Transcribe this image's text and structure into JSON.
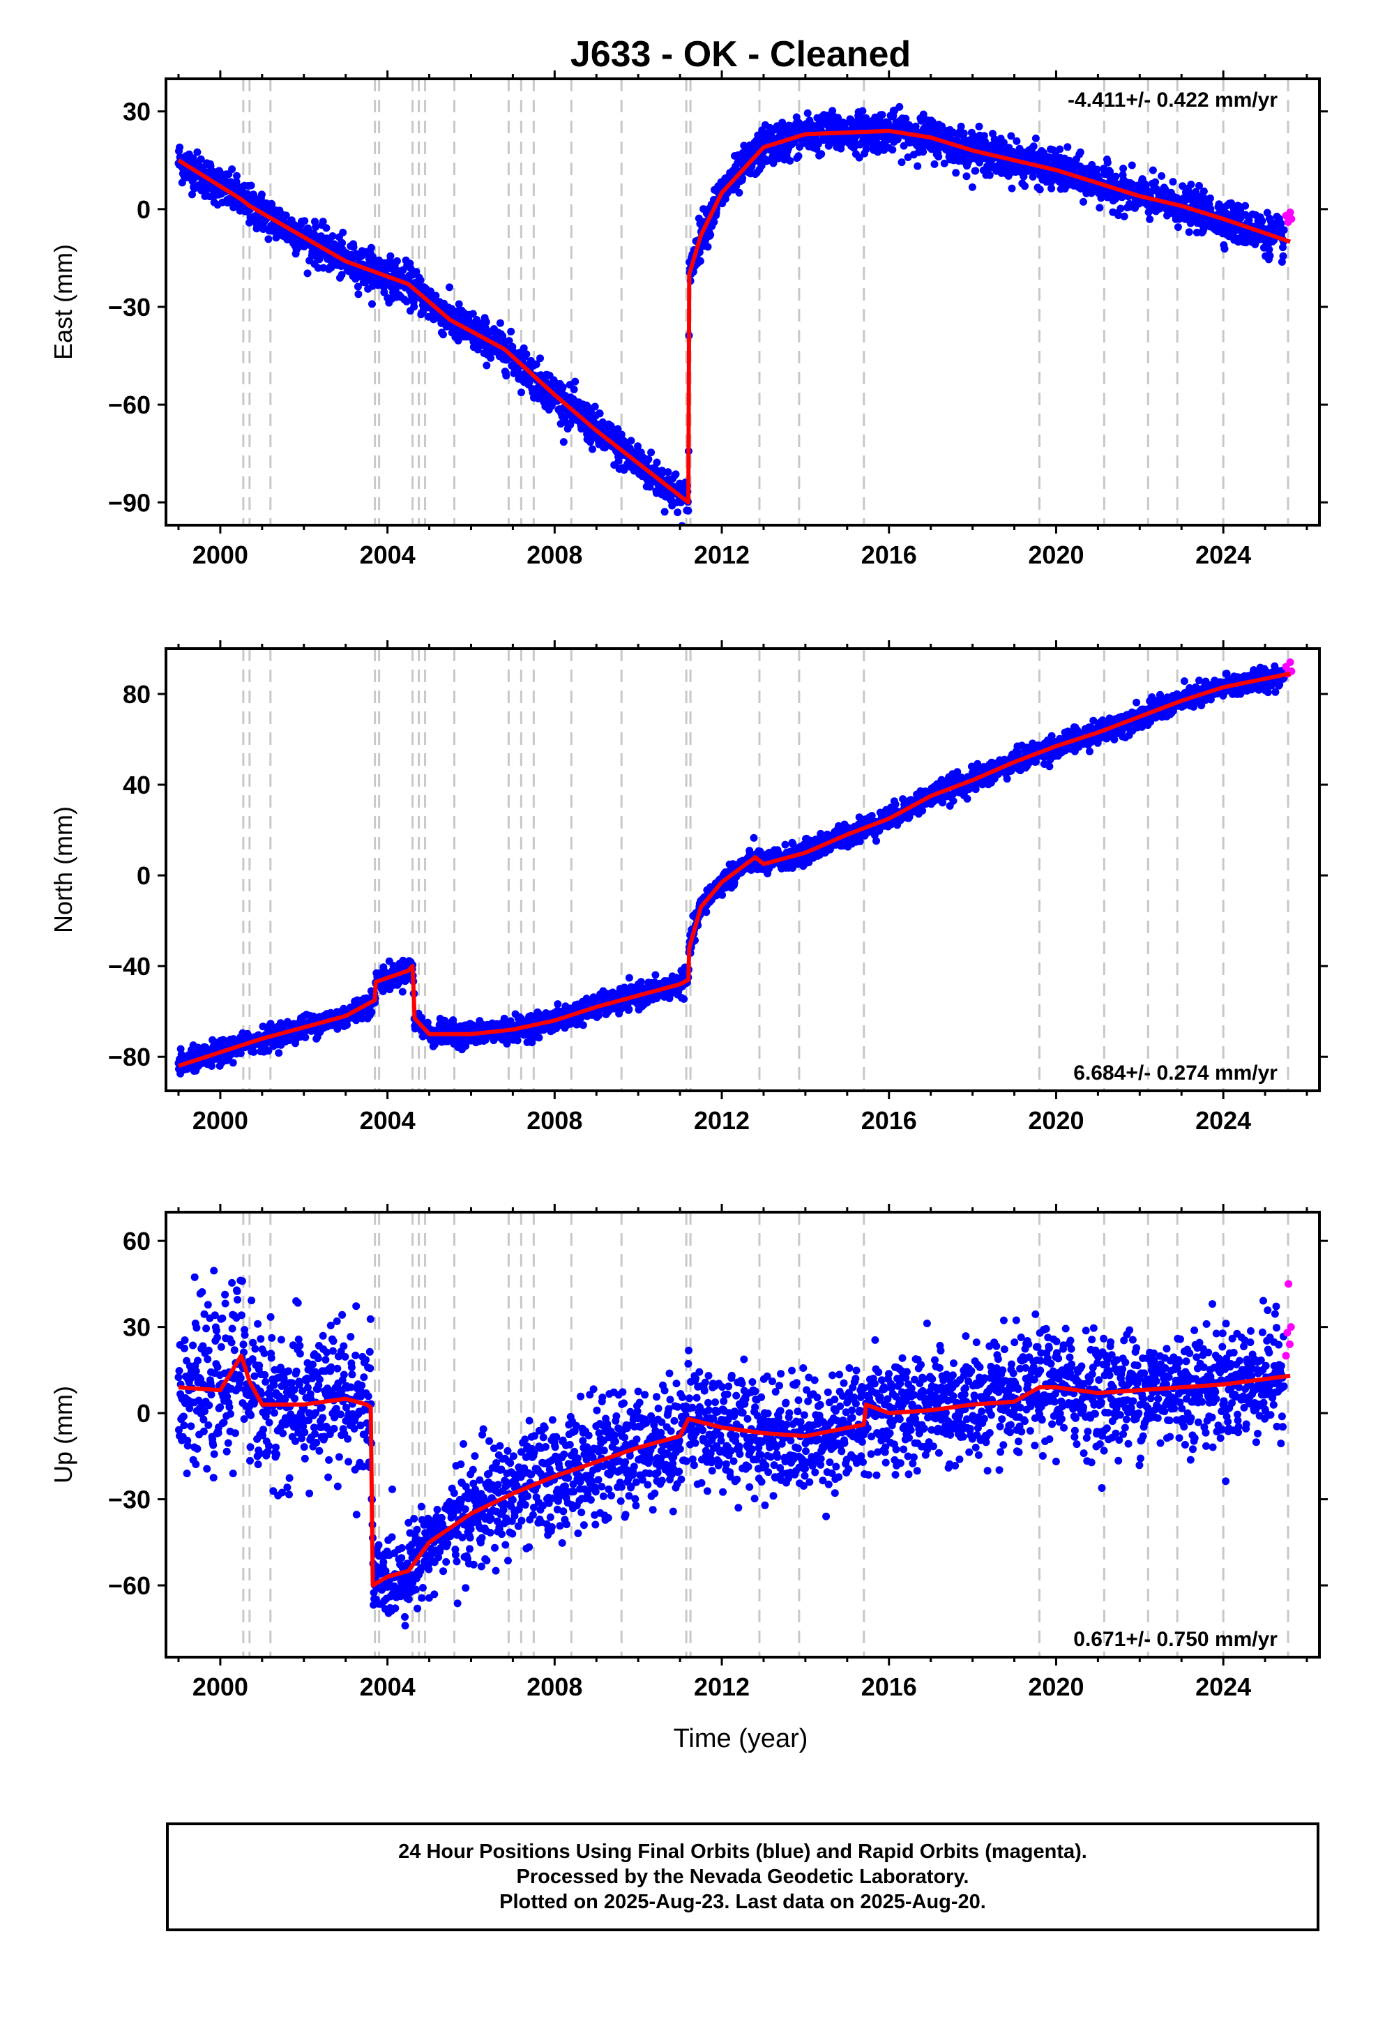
{
  "chart_data": [
    {
      "type": "scatter",
      "title": "J633  - OK - Cleaned",
      "xlabel": "",
      "ylabel": "East (mm)",
      "xlim": [
        1998.7,
        2026.3
      ],
      "ylim": [
        -97,
        40
      ],
      "xticks": [
        2000,
        2004,
        2008,
        2012,
        2016,
        2020,
        2024
      ],
      "yticks": [
        30,
        0,
        -30,
        -60,
        -90
      ],
      "rate_annotation": "-4.411+/- 0.422 mm/yr",
      "annotation_position": "top-right",
      "colors": {
        "final": "#0000ff",
        "rapid": "#ff00ff",
        "model": "#ff0000",
        "events": "#c8c8c8"
      },
      "model": [
        [
          1999.0,
          15
        ],
        [
          2000.5,
          3
        ],
        [
          2000.7,
          1
        ],
        [
          2003.0,
          -16
        ],
        [
          2004.5,
          -23
        ],
        [
          2005.5,
          -34
        ],
        [
          2006.8,
          -43
        ],
        [
          2008.0,
          -57
        ],
        [
          2009.0,
          -68
        ],
        [
          2010.0,
          -78
        ],
        [
          2011.0,
          -88
        ],
        [
          2011.2,
          -90
        ],
        [
          2011.22,
          -20
        ],
        [
          2011.5,
          -8
        ],
        [
          2012.0,
          5
        ],
        [
          2012.5,
          12
        ],
        [
          2013.0,
          19
        ],
        [
          2013.5,
          21
        ],
        [
          2014.0,
          23
        ],
        [
          2016.0,
          24
        ],
        [
          2017.0,
          22
        ],
        [
          2018.0,
          18
        ],
        [
          2019.0,
          15
        ],
        [
          2020.0,
          12
        ],
        [
          2021.0,
          8
        ],
        [
          2022.0,
          4
        ],
        [
          2023.0,
          1
        ],
        [
          2024.0,
          -3
        ],
        [
          2025.6,
          -10
        ]
      ],
      "scatter_sigma": 3,
      "final_range": [
        1999.0,
        2025.45
      ],
      "rapid_points": [
        [
          2025.5,
          -2
        ],
        [
          2025.55,
          -4
        ],
        [
          2025.6,
          -1
        ],
        [
          2025.63,
          -3
        ]
      ]
    },
    {
      "type": "scatter",
      "title": "",
      "xlabel": "",
      "ylabel": "North (mm)",
      "xlim": [
        1998.7,
        2026.3
      ],
      "ylim": [
        -95,
        100
      ],
      "xticks": [
        2000,
        2004,
        2008,
        2012,
        2016,
        2020,
        2024
      ],
      "yticks": [
        80,
        40,
        0,
        -40,
        -80
      ],
      "rate_annotation": "6.684+/- 0.274 mm/yr",
      "annotation_position": "bottom-right",
      "colors": {
        "final": "#0000ff",
        "rapid": "#ff00ff",
        "model": "#ff0000",
        "events": "#c8c8c8"
      },
      "model": [
        [
          1999.0,
          -84
        ],
        [
          2000.0,
          -78
        ],
        [
          2001.0,
          -72
        ],
        [
          2002.0,
          -67
        ],
        [
          2003.0,
          -62
        ],
        [
          2003.7,
          -55
        ],
        [
          2003.72,
          -47
        ],
        [
          2004.5,
          -42
        ],
        [
          2004.6,
          -40
        ],
        [
          2004.65,
          -63
        ],
        [
          2005.0,
          -70
        ],
        [
          2006.0,
          -70
        ],
        [
          2007.0,
          -68
        ],
        [
          2008.0,
          -64
        ],
        [
          2009.0,
          -58
        ],
        [
          2010.0,
          -53
        ],
        [
          2011.0,
          -48
        ],
        [
          2011.2,
          -46
        ],
        [
          2011.22,
          -32
        ],
        [
          2011.5,
          -14
        ],
        [
          2012.0,
          -3
        ],
        [
          2012.8,
          8
        ],
        [
          2013.0,
          5
        ],
        [
          2014.0,
          10
        ],
        [
          2015.0,
          18
        ],
        [
          2016.0,
          25
        ],
        [
          2017.0,
          35
        ],
        [
          2018.0,
          42
        ],
        [
          2019.0,
          50
        ],
        [
          2020.0,
          57
        ],
        [
          2021.0,
          63
        ],
        [
          2022.0,
          70
        ],
        [
          2023.0,
          77
        ],
        [
          2024.0,
          83
        ],
        [
          2025.6,
          89
        ]
      ],
      "scatter_sigma": 2.5,
      "final_range": [
        1999.0,
        2025.45
      ],
      "rapid_points": [
        [
          2025.5,
          92
        ],
        [
          2025.55,
          89
        ],
        [
          2025.6,
          94
        ],
        [
          2025.63,
          90
        ]
      ]
    },
    {
      "type": "scatter",
      "title": "",
      "xlabel": "Time (year)",
      "ylabel": "Up (mm)",
      "xlim": [
        1998.7,
        2026.3
      ],
      "ylim": [
        -85,
        70
      ],
      "xticks": [
        2000,
        2004,
        2008,
        2012,
        2016,
        2020,
        2024
      ],
      "yticks": [
        60,
        30,
        0,
        -30,
        -60
      ],
      "rate_annotation": "0.671+/- 0.750 mm/yr",
      "annotation_position": "bottom-right",
      "colors": {
        "final": "#0000ff",
        "rapid": "#ff00ff",
        "model": "#ff0000",
        "events": "#c8c8c8"
      },
      "model": [
        [
          1999.0,
          9
        ],
        [
          2000.0,
          8
        ],
        [
          2000.5,
          20
        ],
        [
          2000.7,
          11
        ],
        [
          2001.0,
          3
        ],
        [
          2002.0,
          3
        ],
        [
          2003.0,
          5
        ],
        [
          2003.5,
          3
        ],
        [
          2003.6,
          2
        ],
        [
          2003.65,
          -60
        ],
        [
          2004.0,
          -57
        ],
        [
          2004.5,
          -55
        ],
        [
          2005.0,
          -45
        ],
        [
          2006.0,
          -35
        ],
        [
          2007.0,
          -28
        ],
        [
          2008.0,
          -22
        ],
        [
          2009.0,
          -17
        ],
        [
          2010.0,
          -12
        ],
        [
          2011.0,
          -8
        ],
        [
          2011.2,
          -2
        ],
        [
          2012.0,
          -5
        ],
        [
          2013.0,
          -7
        ],
        [
          2014.0,
          -8
        ],
        [
          2015.4,
          -4
        ],
        [
          2015.45,
          3
        ],
        [
          2016.0,
          0
        ],
        [
          2017.0,
          1
        ],
        [
          2018.0,
          3
        ],
        [
          2019.0,
          4
        ],
        [
          2019.6,
          9
        ],
        [
          2020.0,
          9
        ],
        [
          2021.0,
          7
        ],
        [
          2022.0,
          8
        ],
        [
          2023.0,
          9
        ],
        [
          2024.0,
          10
        ],
        [
          2025.6,
          13
        ]
      ],
      "scatter_sigma": 10,
      "final_range": [
        1999.0,
        2025.45
      ],
      "rapid_points": [
        [
          2025.5,
          20
        ],
        [
          2025.53,
          28
        ],
        [
          2025.56,
          45
        ],
        [
          2025.59,
          24
        ],
        [
          2025.62,
          30
        ]
      ]
    }
  ],
  "event_lines": [
    2000.55,
    2000.7,
    2001.2,
    2003.7,
    2003.8,
    2004.6,
    2004.75,
    2004.9,
    2005.6,
    2006.9,
    2007.2,
    2007.5,
    2008.4,
    2009.6,
    2011.15,
    2011.25,
    2012.9,
    2013.85,
    2015.4,
    2019.6,
    2021.15,
    2022.2,
    2022.9,
    2024.0,
    2025.55
  ],
  "footer": {
    "line1": "24 Hour Positions Using Final Orbits (blue) and Rapid Orbits (magenta).",
    "line2": "Processed by the Nevada Geodetic Laboratory.",
    "line3": "Plotted on 2025-Aug-23. Last data on 2025-Aug-20."
  }
}
